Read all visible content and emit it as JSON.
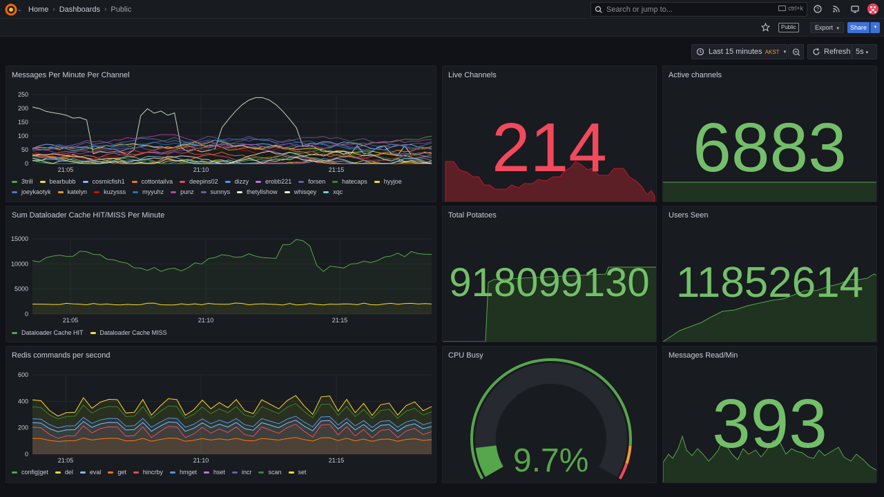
{
  "nav": {
    "breadcrumbs": [
      "Home",
      "Dashboards",
      "Public"
    ],
    "search_placeholder": "Search or jump to...",
    "search_shortcut": "ctrl+k"
  },
  "toolbar": {
    "public_label": "Public",
    "export_label": "Export",
    "share_label": "Share",
    "time_range": "Last 15 minutes",
    "timezone": "AKST",
    "refresh_label": "Refresh",
    "refresh_interval": "5s"
  },
  "colors": {
    "green": "#56a64b",
    "red": "#f2495c",
    "yellow": "#fade2a",
    "orange": "#ff780a",
    "blue": "#5794f2",
    "purple": "#b877d9"
  },
  "panels": {
    "messages": {
      "title": "Messages Per Minute Per Channel",
      "yticks": [
        "250",
        "200",
        "150",
        "100",
        "50",
        "0"
      ],
      "xticks": [
        "21:05",
        "21:10",
        "21:15"
      ],
      "legend": [
        {
          "name": "3trill",
          "color": "#56a64b"
        },
        {
          "name": "bearbubb",
          "color": "#fade2a"
        },
        {
          "name": "cosmicfish1",
          "color": "#8ab8ff"
        },
        {
          "name": "cottontailva",
          "color": "#ff780a"
        },
        {
          "name": "deepins02",
          "color": "#f2495c"
        },
        {
          "name": "dizzy",
          "color": "#5794f2"
        },
        {
          "name": "erobb221",
          "color": "#b877d9"
        },
        {
          "name": "forsen",
          "color": "#705da0"
        },
        {
          "name": "hatecaps",
          "color": "#37872d"
        },
        {
          "name": "hyyjoe",
          "color": "#fade2a"
        },
        {
          "name": "joeykaotyk",
          "color": "#447ebc"
        },
        {
          "name": "katelyn",
          "color": "#f79520"
        },
        {
          "name": "kuzysss",
          "color": "#bf1b00"
        },
        {
          "name": "myyuhz",
          "color": "#1f78c1"
        },
        {
          "name": "punz",
          "color": "#ba43a9"
        },
        {
          "name": "sunnys",
          "color": "#705da0"
        },
        {
          "name": "thetyllshow",
          "color": "#e0f9d7"
        },
        {
          "name": "whisqey",
          "color": "#fceaca"
        },
        {
          "name": "xqc",
          "color": "#6ed0e0"
        }
      ]
    },
    "live_channels": {
      "title": "Live Channels",
      "value": "214"
    },
    "active_channels": {
      "title": "Active channels",
      "value": "6883"
    },
    "dataloader": {
      "title": "Sum Dataloader Cache HIT/MISS Per Minute",
      "yticks": [
        "15000",
        "10000",
        "5000",
        "0"
      ],
      "xticks": [
        "21:05",
        "21:10",
        "21:15"
      ],
      "legend": [
        {
          "name": "Dataloader Cache HIT",
          "color": "#56a64b"
        },
        {
          "name": "Dataloader Cache MISS",
          "color": "#fade2a"
        }
      ]
    },
    "total_potatoes": {
      "title": "Total Potatoes",
      "value": "918099130"
    },
    "users_seen": {
      "title": "Users Seen",
      "value": "11852614"
    },
    "redis": {
      "title": "Redis commands per second",
      "yticks": [
        "600",
        "400",
        "200",
        "0"
      ],
      "xticks": [
        "21:05",
        "21:10",
        "21:15"
      ],
      "legend": [
        {
          "name": "config|get",
          "color": "#56a64b"
        },
        {
          "name": "del",
          "color": "#fade2a"
        },
        {
          "name": "eval",
          "color": "#8ab8ff"
        },
        {
          "name": "get",
          "color": "#ff780a"
        },
        {
          "name": "hincrby",
          "color": "#f2495c"
        },
        {
          "name": "hmget",
          "color": "#5794f2"
        },
        {
          "name": "hset",
          "color": "#b877d9"
        },
        {
          "name": "incr",
          "color": "#705da0"
        },
        {
          "name": "scan",
          "color": "#37872d"
        },
        {
          "name": "set",
          "color": "#fade2a"
        }
      ]
    },
    "cpu_busy": {
      "title": "CPU Busy",
      "value": "9.7%",
      "percent": 9.7
    },
    "messages_read": {
      "title": "Messages Read/Min",
      "value": "393"
    }
  }
}
